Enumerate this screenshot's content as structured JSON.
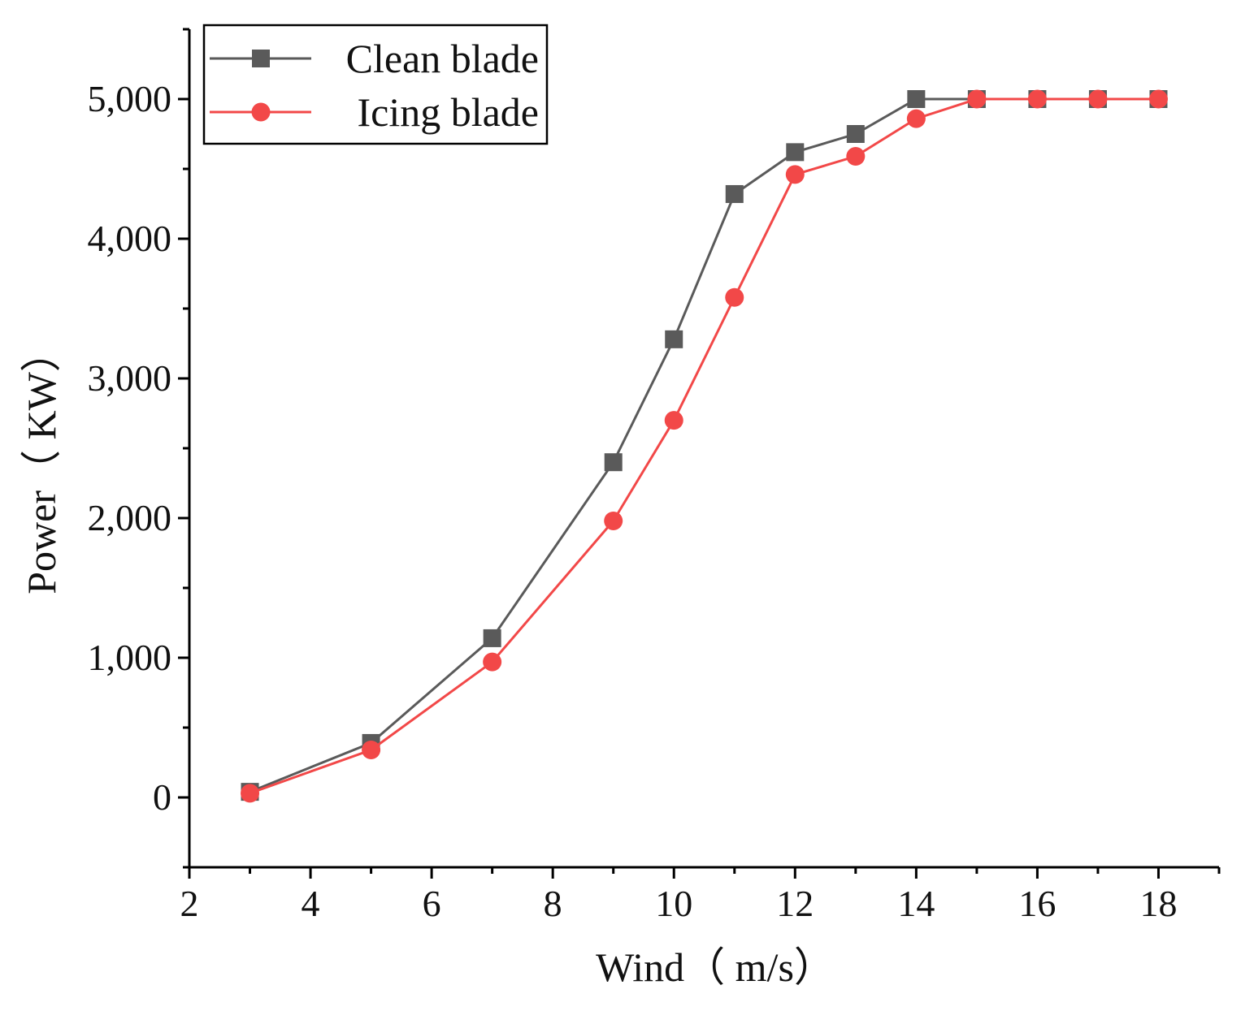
{
  "chart_data": {
    "type": "line",
    "title": "",
    "xlabel": "Wind（ m/s）",
    "ylabel": "Power（ KW）",
    "xlim": [
      2,
      19
    ],
    "ylim": [
      -500,
      5500
    ],
    "x_ticks": [
      2,
      4,
      6,
      8,
      10,
      12,
      14,
      16,
      18
    ],
    "x_tick_labels": [
      "2",
      "4",
      "6",
      "8",
      "10",
      "12",
      "14",
      "16",
      "18"
    ],
    "y_ticks": [
      0,
      1000,
      2000,
      3000,
      4000,
      5000
    ],
    "y_tick_labels": [
      "0",
      "1,000",
      "2,000",
      "3,000",
      "4,000",
      "5,000"
    ],
    "legend_position": "top-left",
    "series": [
      {
        "name": "Clean blade",
        "color": "#5a5a5a",
        "marker": "square",
        "x": [
          3,
          5,
          7,
          9,
          10,
          11,
          12,
          13,
          14,
          15,
          16,
          17,
          18
        ],
        "y": [
          40,
          390,
          1140,
          2400,
          3280,
          4320,
          4620,
          4750,
          5000,
          5000,
          5000,
          5000,
          5000
        ]
      },
      {
        "name": "Icing blade",
        "color": "#f24848",
        "marker": "circle",
        "x": [
          3,
          5,
          7,
          9,
          10,
          11,
          12,
          13,
          14,
          15,
          16,
          17,
          18
        ],
        "y": [
          30,
          340,
          970,
          1980,
          2700,
          3580,
          4460,
          4590,
          4860,
          5000,
          5000,
          5000,
          5000
        ]
      }
    ]
  }
}
